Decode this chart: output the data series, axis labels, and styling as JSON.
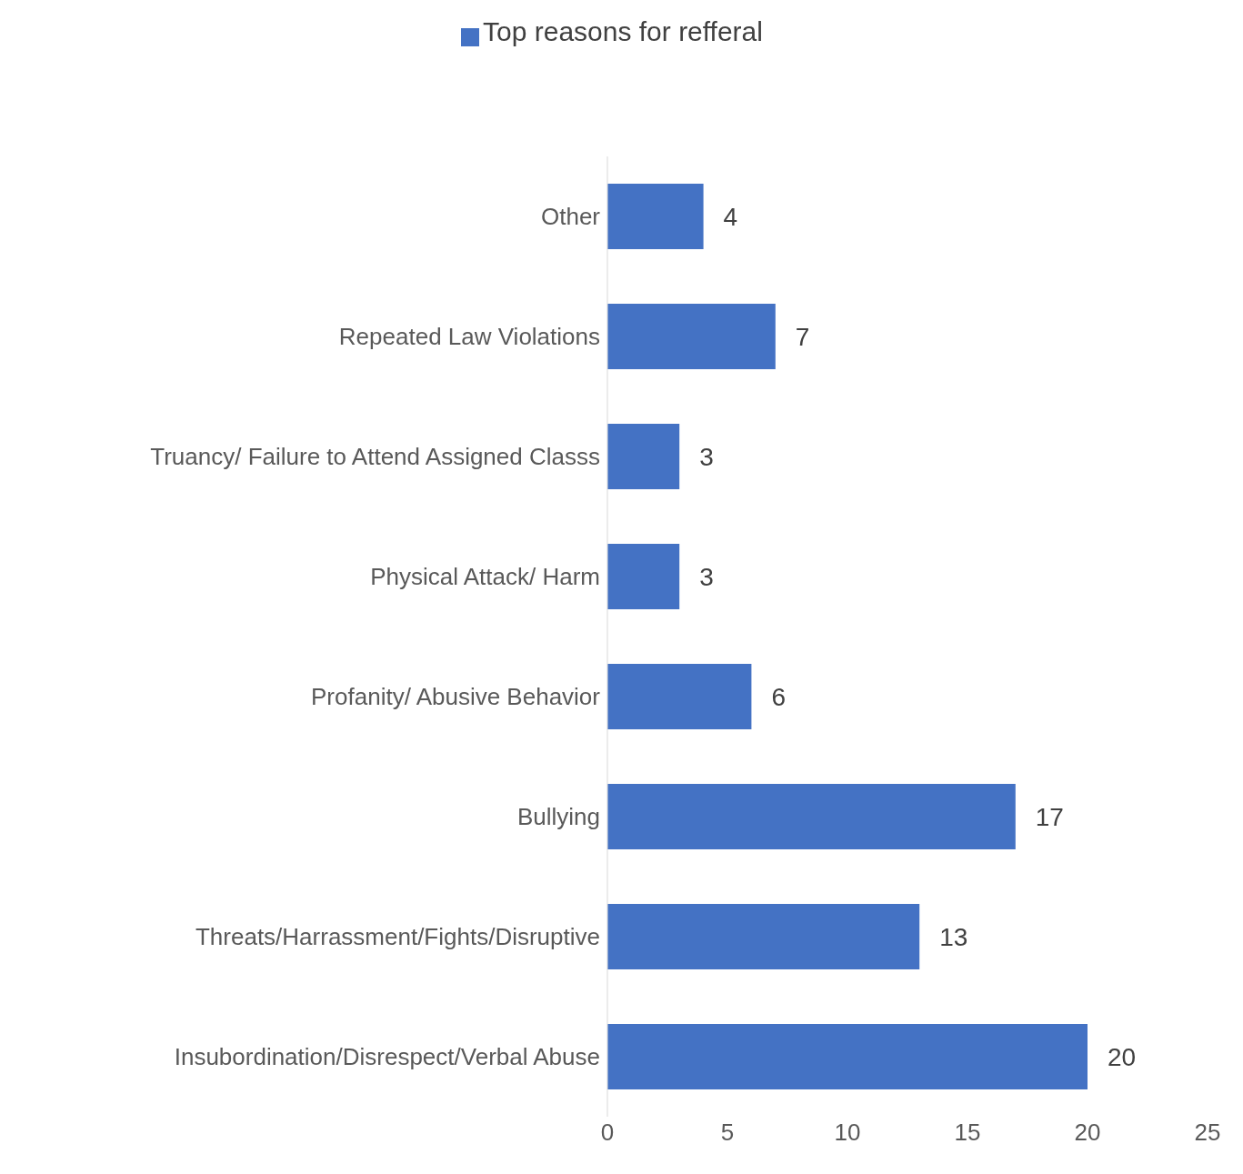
{
  "chart_data": {
    "type": "bar",
    "orientation": "horizontal",
    "categories": [
      "Other",
      "Repeated Law Violations",
      "Truancy/ Failure to Attend Assigned Classs",
      "Physical Attack/ Harm",
      "Profanity/ Abusive Behavior",
      "Bullying",
      "Threats/Harrassment/Fights/Disruptive",
      "Insubordination/Disrespect/Verbal Abuse"
    ],
    "series": [
      {
        "name": "Top reasons for refferal",
        "color": "#4472c4",
        "values": [
          4,
          7,
          3,
          3,
          6,
          17,
          13,
          20
        ]
      }
    ],
    "xlim": [
      0,
      25
    ],
    "xticks": [
      0,
      5,
      10,
      15,
      20,
      25
    ],
    "data_labels": true,
    "legend": "top",
    "grid": false
  }
}
